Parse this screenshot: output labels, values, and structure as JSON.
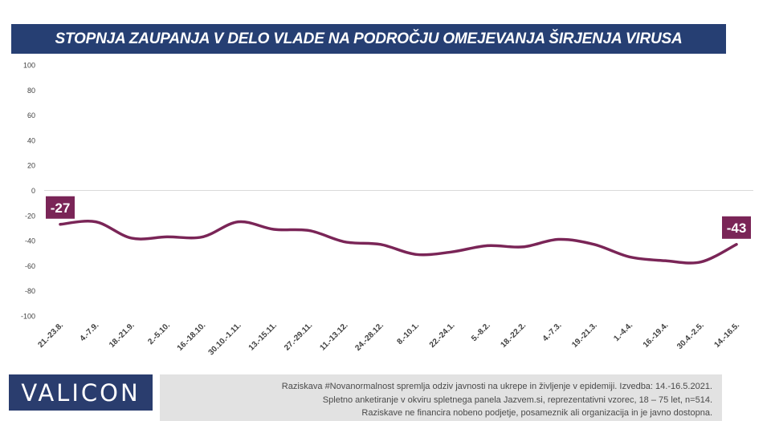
{
  "title": "STOPNJA ZAUPANJA V DELO VLADE NA PODROČJU OMEJEVANJA ŠIRJENJA VIRUSA",
  "logo": "VALICON",
  "footnote": [
    "Raziskava #Novanormalnost spremlja odziv javnosti na ukrepe in življenje v epidemiji. Izvedba: 14.-16.5.2021.",
    "Spletno anketiranje v okviru spletnega panela Jazvem.si, reprezentativni vzorec, 18 – 75 let, n=514.",
    "Raziskave ne financira nobeno podjetje, posameznik ali organizacija in je javno dostopna."
  ],
  "colors": {
    "banner": "#263f73",
    "line": "#7a2557",
    "label_bg": "#7a2557",
    "logo_bg": "#2a3d6e",
    "note_bg": "#e2e2e2"
  },
  "chart_data": {
    "type": "line",
    "categories": [
      "21.-23.8.",
      "4.-7.9.",
      "18.-21.9.",
      "2.-5.10.",
      "16.-18.10.",
      "30.10.-1.11.",
      "13.-15.11.",
      "27.-29.11.",
      "11.-13.12.",
      "24.-28.12.",
      "8.-10.1.",
      "22.-24.1.",
      "5.-8.2.",
      "18.-22.2.",
      "4.-7.3.",
      "19.-21.3.",
      "1.-4.4.",
      "16.-19.4.",
      "30.4.-2.5.",
      "14.-16.5."
    ],
    "series": [
      {
        "values": [
          -27,
          -25,
          -38,
          -37,
          -37,
          -25,
          -31,
          -32,
          -41,
          -43,
          -51,
          -49,
          -44,
          -45,
          -39,
          -43,
          -53,
          -56,
          -57,
          -43
        ]
      }
    ],
    "ylim": [
      -100,
      100
    ],
    "yticks": [
      100,
      80,
      60,
      40,
      20,
      0,
      -20,
      -40,
      -60,
      -80,
      -100
    ],
    "labeled_points": [
      {
        "index": 0,
        "text": "-27"
      },
      {
        "index": 19,
        "text": "-43"
      }
    ],
    "zero_line": true,
    "grid": false,
    "legend": "none"
  }
}
